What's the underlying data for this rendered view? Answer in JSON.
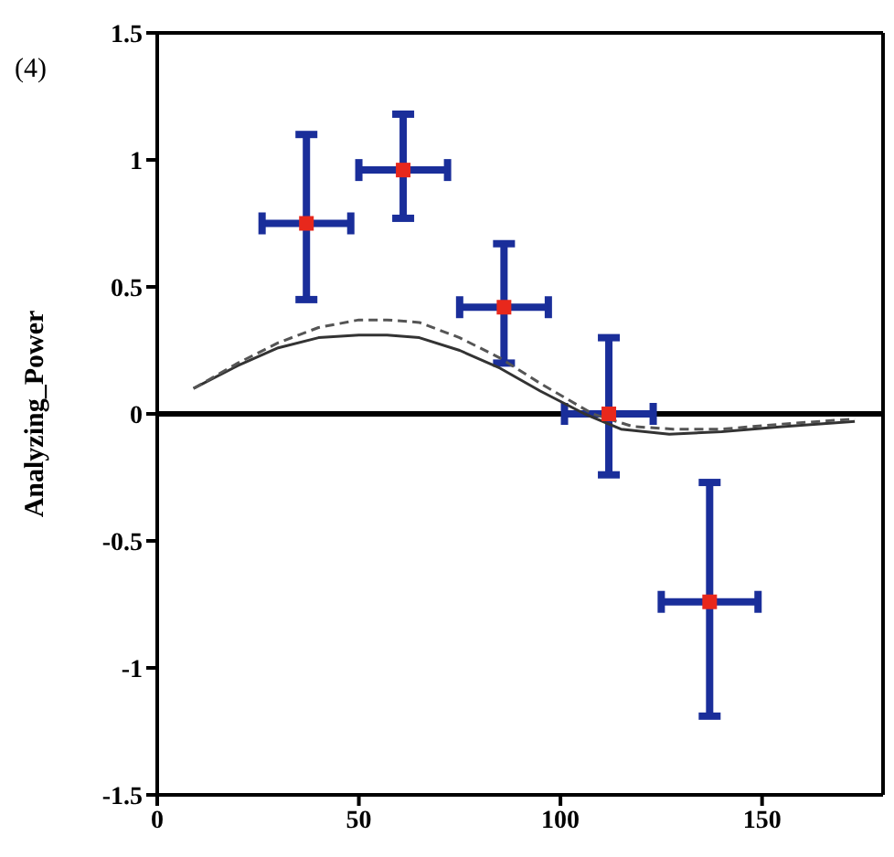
{
  "chart_data": {
    "type": "scatter",
    "ylabel": "Analyzing_Power",
    "annotations": [
      "(4)"
    ],
    "xlim": [
      0,
      180
    ],
    "xticks": [
      0,
      50,
      100,
      150
    ],
    "ylim": [
      -1.5,
      1.5
    ],
    "yticks": [
      1.5,
      1,
      0.5,
      0,
      -0.5,
      -1,
      -1.5
    ],
    "legend": false,
    "ref_lines": [
      {
        "axis": "y",
        "value": 0,
        "color": "#000000"
      }
    ],
    "series": [
      {
        "marker": "square",
        "color": "#e8281c",
        "x": [
          37,
          61,
          86,
          112,
          137
        ],
        "values": [
          0.75,
          0.96,
          0.42,
          0,
          -0.74
        ],
        "errors": [
          [
            0.45,
            1.1
          ],
          [
            0.77,
            1.18
          ],
          [
            0.2,
            0.67
          ],
          [
            -0.24,
            0.3
          ],
          [
            -1.19,
            -0.27
          ]
        ],
        "xerrors": [
          11,
          11,
          11,
          11,
          12
        ]
      },
      {
        "type": "line",
        "color": "#333333",
        "line_style": "solid",
        "x": [
          9,
          20,
          30,
          40,
          50,
          57,
          65,
          75,
          85,
          95,
          106,
          115,
          127,
          140,
          155,
          173
        ],
        "values": [
          0.1,
          0.19,
          0.26,
          0.3,
          0.31,
          0.31,
          0.3,
          0.25,
          0.18,
          0.09,
          0,
          -0.06,
          -0.08,
          -0.07,
          -0.05,
          -0.03
        ]
      },
      {
        "type": "line",
        "color": "#555555",
        "line_style": "dashed",
        "x": [
          9,
          20,
          30,
          40,
          50,
          57,
          65,
          75,
          85,
          95,
          108,
          118,
          128,
          140,
          155,
          173
        ],
        "values": [
          0.1,
          0.2,
          0.28,
          0.34,
          0.37,
          0.37,
          0.36,
          0.3,
          0.22,
          0.12,
          0,
          -0.05,
          -0.06,
          -0.06,
          -0.04,
          -0.02
        ]
      }
    ]
  }
}
